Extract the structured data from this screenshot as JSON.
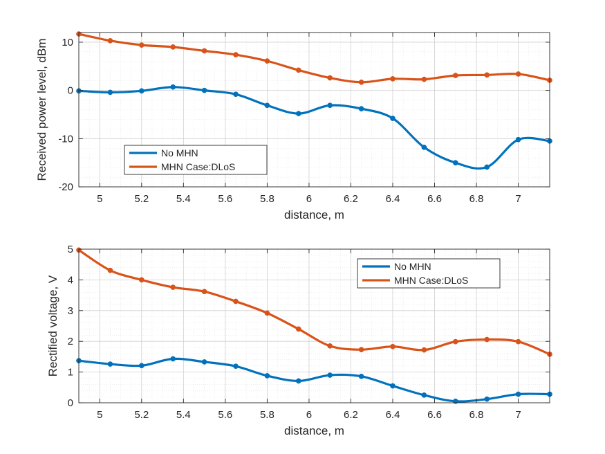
{
  "chart_data": [
    {
      "type": "line",
      "title": "",
      "xlabel": "distance, m",
      "ylabel": "Received power level, dBm",
      "xlim": [
        4.9,
        7.15
      ],
      "ylim": [
        -20,
        12
      ],
      "xticks": [
        5,
        5.2,
        5.4,
        5.6,
        5.8,
        6,
        6.2,
        6.4,
        6.6,
        6.8,
        7
      ],
      "yticks": [
        -20,
        -10,
        0,
        10
      ],
      "grid": true,
      "minor_grid": true,
      "legend_position": "bottom-left",
      "series": [
        {
          "name": "No MHN",
          "color": "#0072BD",
          "x": [
            4.9,
            5.05,
            5.2,
            5.35,
            5.5,
            5.65,
            5.8,
            5.95,
            6.1,
            6.25,
            6.4,
            6.55,
            6.7,
            6.85,
            7.0,
            7.15
          ],
          "y": [
            -0.1,
            -0.4,
            -0.1,
            0.7,
            0.0,
            -0.8,
            -3.1,
            -4.8,
            -3.1,
            -3.8,
            -5.8,
            -11.8,
            -15.0,
            -15.9,
            -10.2,
            -10.5
          ]
        },
        {
          "name": "MHN Case:DLoS",
          "color": "#D95319",
          "x": [
            4.9,
            5.05,
            5.2,
            5.35,
            5.5,
            5.65,
            5.8,
            5.95,
            6.1,
            6.25,
            6.4,
            6.55,
            6.7,
            6.85,
            7.0,
            7.15
          ],
          "y": [
            11.7,
            10.3,
            9.4,
            9.0,
            8.2,
            7.4,
            6.1,
            4.2,
            2.6,
            1.7,
            2.4,
            2.3,
            3.1,
            3.2,
            3.4,
            2.1
          ]
        }
      ]
    },
    {
      "type": "line",
      "title": "",
      "xlabel": "distance, m",
      "ylabel": "Rectified voltage, V",
      "xlim": [
        4.9,
        7.15
      ],
      "ylim": [
        0,
        5
      ],
      "xticks": [
        5,
        5.2,
        5.4,
        5.6,
        5.8,
        6,
        6.2,
        6.4,
        6.6,
        6.8,
        7
      ],
      "yticks": [
        0,
        1,
        2,
        3,
        4,
        5
      ],
      "grid": true,
      "minor_grid": true,
      "legend_position": "top-right",
      "series": [
        {
          "name": "No MHN",
          "color": "#0072BD",
          "x": [
            4.9,
            5.05,
            5.2,
            5.35,
            5.5,
            5.65,
            5.8,
            5.95,
            6.1,
            6.25,
            6.4,
            6.55,
            6.7,
            6.85,
            7.0,
            7.15
          ],
          "y": [
            1.37,
            1.26,
            1.21,
            1.43,
            1.33,
            1.19,
            0.88,
            0.71,
            0.9,
            0.86,
            0.55,
            0.25,
            0.05,
            0.12,
            0.28,
            0.28
          ]
        },
        {
          "name": "MHN Case:DLoS",
          "color": "#D95319",
          "x": [
            4.9,
            5.05,
            5.2,
            5.35,
            5.5,
            5.65,
            5.8,
            5.95,
            6.1,
            6.25,
            6.4,
            6.55,
            6.7,
            6.85,
            7.0,
            7.15
          ],
          "y": [
            4.97,
            4.31,
            4.0,
            3.76,
            3.62,
            3.3,
            2.92,
            2.4,
            1.85,
            1.73,
            1.83,
            1.72,
            1.99,
            2.06,
            1.99,
            1.58
          ]
        }
      ]
    }
  ]
}
